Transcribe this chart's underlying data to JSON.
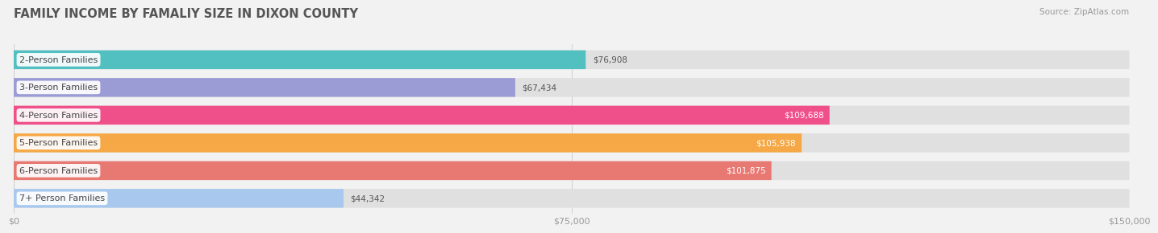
{
  "title": "FAMILY INCOME BY FAMALIY SIZE IN DIXON COUNTY",
  "source": "Source: ZipAtlas.com",
  "categories": [
    "2-Person Families",
    "3-Person Families",
    "4-Person Families",
    "5-Person Families",
    "6-Person Families",
    "7+ Person Families"
  ],
  "values": [
    76908,
    67434,
    109688,
    105938,
    101875,
    44342
  ],
  "bar_colors": [
    "#52bfc1",
    "#9b9bd6",
    "#f0508a",
    "#f5a845",
    "#e87872",
    "#a8c8ee"
  ],
  "value_inside": [
    false,
    false,
    true,
    true,
    true,
    false
  ],
  "bg_color": "#f2f2f2",
  "bar_bg_color": "#e0e0e0",
  "title_color": "#555555",
  "source_color": "#999999",
  "xlim": [
    0,
    150000
  ],
  "xticks": [
    0,
    75000,
    150000
  ],
  "xtick_labels": [
    "$0",
    "$75,000",
    "$150,000"
  ],
  "title_fontsize": 10.5,
  "source_fontsize": 7.5,
  "cat_fontsize": 8,
  "value_fontsize": 7.5,
  "tick_fontsize": 8
}
